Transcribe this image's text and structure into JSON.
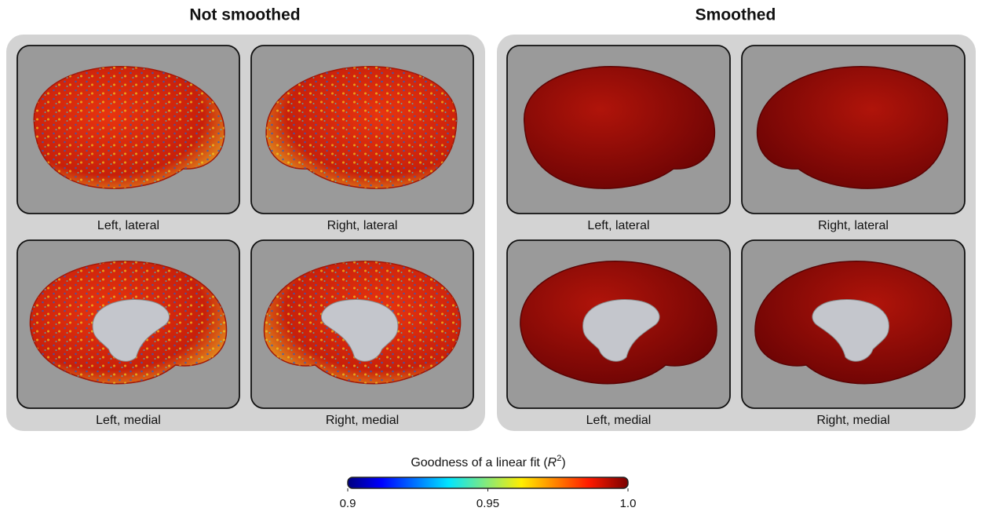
{
  "panels": [
    {
      "title": "Not smoothed",
      "views": [
        "Left, lateral",
        "Right, lateral",
        "Left, medial",
        "Right, medial"
      ]
    },
    {
      "title": "Smoothed",
      "views": [
        "Left, lateral",
        "Right, lateral",
        "Left, medial",
        "Right, medial"
      ]
    }
  ],
  "colorbar": {
    "title": [
      "Goodness of a linear fit (",
      "R",
      "2",
      ")"
    ],
    "lim": [
      0.9,
      1
    ],
    "ticks": [
      0.9,
      0.95,
      {
        "value": 1,
        "label": "1.0"
      }
    ]
  }
}
